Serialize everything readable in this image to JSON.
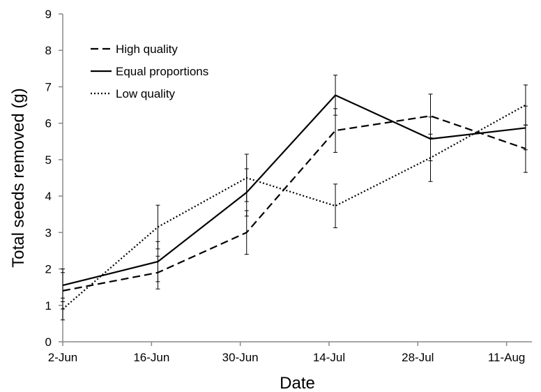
{
  "chart_data": {
    "type": "line",
    "xlabel": "Date",
    "ylabel": "Total seeds removed (g)",
    "ylim": [
      0,
      9
    ],
    "yticks": [
      0,
      1,
      2,
      3,
      4,
      5,
      6,
      7,
      8,
      9
    ],
    "xlim": [
      "2-Jun",
      "15-Aug"
    ],
    "xticks": [
      "2-Jun",
      "16-Jun",
      "30-Jun",
      "14-Jul",
      "28-Jul",
      "11-Aug"
    ],
    "x": [
      "2-Jun",
      "17-Jun",
      "1-Jul",
      "15-Jul",
      "30-Jul",
      "14-Aug"
    ],
    "grid": false,
    "legend_position": "top-left",
    "series": [
      {
        "name": "High quality",
        "line_style": "dashed",
        "values": [
          1.4,
          1.9,
          3.0,
          5.8,
          6.2,
          5.3
        ],
        "error": [
          0.5,
          0.45,
          0.6,
          0.6,
          0.6,
          0.65
        ]
      },
      {
        "name": "Equal proportions",
        "line_style": "solid",
        "values": [
          1.55,
          2.2,
          4.1,
          6.77,
          5.57,
          5.87
        ],
        "error": [
          0.45,
          0.55,
          0.65,
          0.55,
          0.6,
          0.6
        ]
      },
      {
        "name": "Low quality",
        "line_style": "dotted",
        "values": [
          0.9,
          3.15,
          4.5,
          3.73,
          5.05,
          6.5
        ],
        "error": [
          0.3,
          0.6,
          0.65,
          0.6,
          0.65,
          0.55
        ]
      }
    ]
  }
}
